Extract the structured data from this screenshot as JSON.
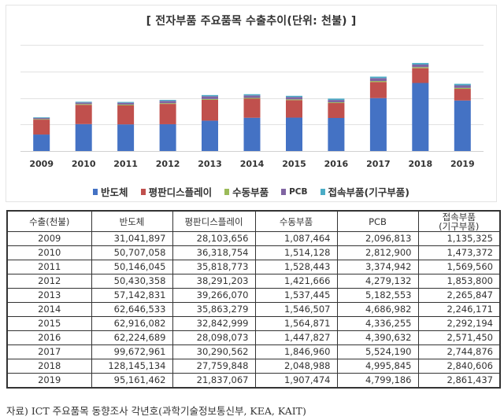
{
  "chart_data": {
    "type": "bar",
    "stacked": true,
    "title": "[ 전자부품 주요품목 수출추이(단위: 천불) ]",
    "xlabel": "",
    "ylabel": "",
    "ylim": [
      0,
      200000000
    ],
    "ytick_step": 50000000,
    "grid": true,
    "y_tick_labels_visible": false,
    "legend_position": "bottom",
    "categories": [
      "2009",
      "2010",
      "2011",
      "2012",
      "2013",
      "2014",
      "2015",
      "2016",
      "2017",
      "2018",
      "2019"
    ],
    "series": [
      {
        "name": "반도체",
        "color": "#4472C4",
        "values": [
          31041897,
          50707058,
          50146045,
          50430358,
          57142831,
          62646533,
          62916082,
          62224689,
          99672961,
          128145134,
          95161462
        ]
      },
      {
        "name": "평판디스플레이",
        "color": "#C0504D",
        "values": [
          28103656,
          36318754,
          35818773,
          38291203,
          39266070,
          35863279,
          32842999,
          28098073,
          30290562,
          27759848,
          21837067
        ]
      },
      {
        "name": "수동부품",
        "color": "#9BBB59",
        "values": [
          1087464,
          1514128,
          1528443,
          1421666,
          1537445,
          1546507,
          1564871,
          1447827,
          1846960,
          2048988,
          1907474
        ]
      },
      {
        "name": "PCB",
        "color": "#8064A2",
        "values": [
          2096813,
          2812900,
          3374942,
          4279132,
          5182553,
          4686982,
          4336255,
          4390632,
          5524190,
          4995845,
          4799186
        ]
      },
      {
        "name": "접속부품(기구부품)",
        "color": "#4BACC6",
        "values": [
          1135325,
          1473372,
          1569560,
          1853800,
          2265847,
          2246171,
          2292194,
          2571450,
          2744876,
          2840606,
          2861437
        ]
      }
    ]
  },
  "table": {
    "headers": [
      "수출(천불)",
      "반도체",
      "평판디스플레이",
      "수동부품",
      "PCB",
      "접속부품\n(기구부품)"
    ],
    "header_line1": [
      "수출(천불)",
      "반도체",
      "평판디스플레이",
      "수동부품",
      "PCB",
      "접속부품"
    ],
    "header_line2": [
      "",
      "",
      "",
      "",
      "",
      "(기구부품)"
    ],
    "rows": [
      [
        "2009",
        "31,041,897",
        "28,103,656",
        "1,087,464",
        "2,096,813",
        "1,135,325"
      ],
      [
        "2010",
        "50,707,058",
        "36,318,754",
        "1,514,128",
        "2,812,900",
        "1,473,372"
      ],
      [
        "2011",
        "50,146,045",
        "35,818,773",
        "1,528,443",
        "3,374,942",
        "1,569,560"
      ],
      [
        "2012",
        "50,430,358",
        "38,291,203",
        "1,421,666",
        "4,279,132",
        "1,853,800"
      ],
      [
        "2013",
        "57,142,831",
        "39,266,070",
        "1,537,445",
        "5,182,553",
        "2,265,847"
      ],
      [
        "2014",
        "62,646,533",
        "35,863,279",
        "1,546,507",
        "4,686,982",
        "2,246,171"
      ],
      [
        "2015",
        "62,916,082",
        "32,842,999",
        "1,564,871",
        "4,336,255",
        "2,292,194"
      ],
      [
        "2016",
        "62,224,689",
        "28,098,073",
        "1,447,827",
        "4,390,632",
        "2,571,450"
      ],
      [
        "2017",
        "99,672,961",
        "30,290,562",
        "1,846,960",
        "5,524,190",
        "2,744,876"
      ],
      [
        "2018",
        "128,145,134",
        "27,759,848",
        "2,048,988",
        "4,995,845",
        "2,840,606"
      ],
      [
        "2019",
        "95,161,462",
        "21,837,067",
        "1,907,474",
        "4,799,186",
        "2,861,437"
      ]
    ]
  },
  "footnote": "자료) ICT 주요품목 동향조사 각년호(과학기술정보통신부, KEA, KAIT)"
}
